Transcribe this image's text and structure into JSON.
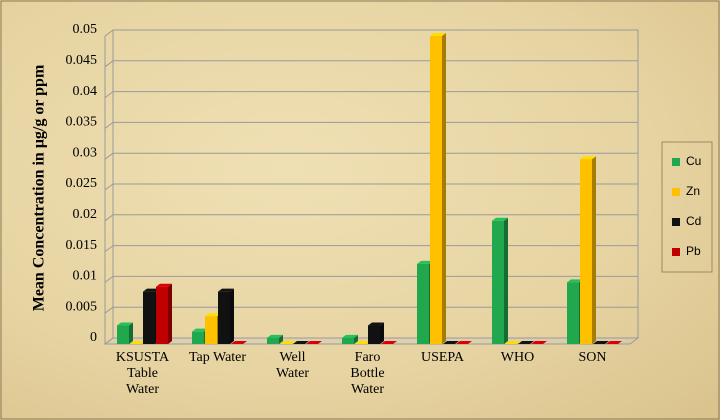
{
  "chart_data": {
    "type": "bar3d",
    "y_label": "Mean Concentration in μg/g or ppm",
    "categories": [
      "KSUSTA Table Water",
      "Tap Water",
      "Well Water",
      "Faro Bottle Water",
      "USEPA",
      "WHO",
      "SON"
    ],
    "series": [
      {
        "name": "Cu",
        "color": "#21a84f",
        "values": [
          0.003,
          0.002,
          0.001,
          0.001,
          0.013,
          0.02,
          0.01
        ]
      },
      {
        "name": "Zn",
        "color": "#ffc000",
        "values": [
          0,
          0.0045,
          0,
          0,
          0.05,
          0,
          0.03
        ]
      },
      {
        "name": "Cd",
        "color": "#111111",
        "values": [
          0.0085,
          0.0085,
          0,
          0.003,
          0,
          0,
          0
        ]
      },
      {
        "name": "Pb",
        "color": "#c00000",
        "values": [
          0.0093,
          0,
          0,
          0,
          0,
          0,
          0
        ]
      }
    ],
    "ylim": [
      0,
      0.05
    ],
    "yticks": [
      0,
      0.005,
      0.01,
      0.015,
      0.02,
      0.025,
      0.03,
      0.035,
      0.04,
      0.045,
      0.05
    ],
    "grid": true,
    "legend": "right"
  }
}
